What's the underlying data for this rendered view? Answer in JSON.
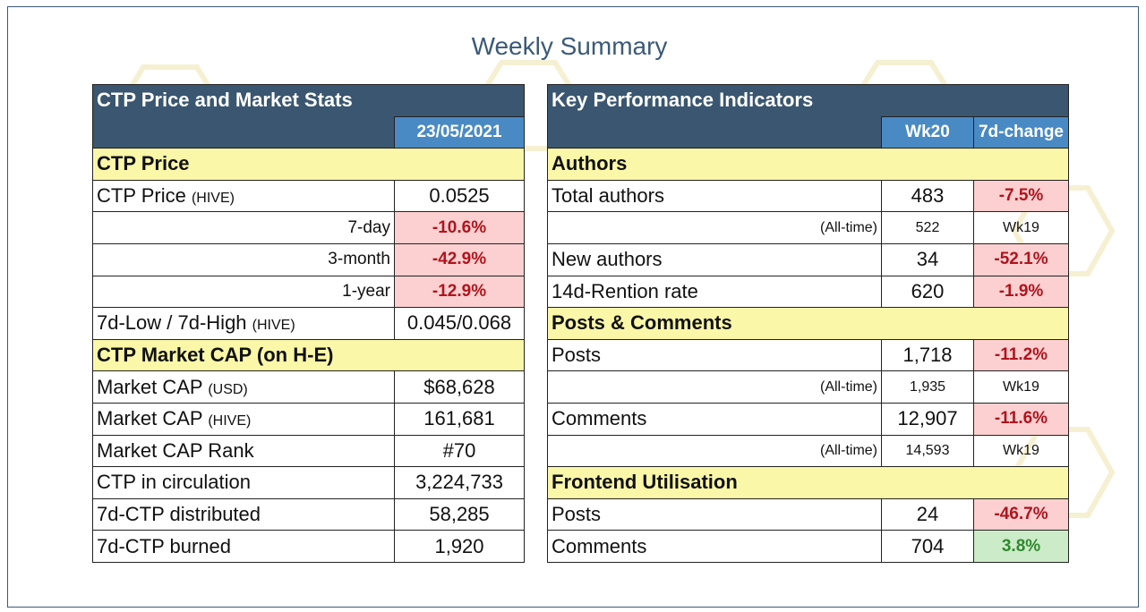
{
  "title": "Weekly Summary",
  "left_table": {
    "header": "CTP Price and Market Stats",
    "date": "23/05/2021",
    "sections": [
      {
        "label": "CTP Price",
        "rows": [
          {
            "label": "CTP Price",
            "unit": "(HIVE)",
            "value": "0.0525",
            "kind": "main"
          },
          {
            "label": "7-day",
            "unit": "",
            "value": "-10.6%",
            "kind": "change"
          },
          {
            "label": "3-month",
            "unit": "",
            "value": "-42.9%",
            "kind": "change"
          },
          {
            "label": "1-year",
            "unit": "",
            "value": "-12.9%",
            "kind": "change"
          },
          {
            "label": "7d-Low / 7d-High",
            "unit": "(HIVE)",
            "value": "0.045/0.068",
            "kind": "main"
          }
        ]
      },
      {
        "label": "CTP Market CAP (on H-E)",
        "rows": [
          {
            "label": "Market CAP",
            "unit": "(USD)",
            "value": "$68,628",
            "kind": "main"
          },
          {
            "label": "Market CAP",
            "unit": "(HIVE)",
            "value": "161,681",
            "kind": "main"
          },
          {
            "label": "Market CAP Rank",
            "unit": "",
            "value": "#70",
            "kind": "main"
          },
          {
            "label": "CTP in circulation",
            "unit": "",
            "value": "3,224,733",
            "kind": "main"
          },
          {
            "label": "7d-CTP distributed",
            "unit": "",
            "value": "58,285",
            "kind": "main"
          },
          {
            "label": "7d-CTP burned",
            "unit": "",
            "value": "1,920",
            "kind": "main"
          }
        ]
      }
    ]
  },
  "right_table": {
    "header": "Key Performance Indicators",
    "col1": "Wk20",
    "col2": "7d-change",
    "sections": [
      {
        "label": "Authors",
        "rows": [
          {
            "label": "Total authors",
            "value": "483",
            "change": "-7.5%",
            "kind": "main",
            "tone": "neg"
          },
          {
            "label": "(All-time)",
            "value": "522",
            "change": "Wk19",
            "kind": "alltime",
            "tone": "none"
          },
          {
            "label": "New authors",
            "value": "34",
            "change": "-52.1%",
            "kind": "main",
            "tone": "neg"
          },
          {
            "label": "14d-Rention rate",
            "value": "620",
            "change": "-1.9%",
            "kind": "main",
            "tone": "neg"
          }
        ]
      },
      {
        "label": "Posts & Comments",
        "rows": [
          {
            "label": "Posts",
            "value": "1,718",
            "change": "-11.2%",
            "kind": "main",
            "tone": "neg"
          },
          {
            "label": "(All-time)",
            "value": "1,935",
            "change": "Wk19",
            "kind": "alltime",
            "tone": "none"
          },
          {
            "label": "Comments",
            "value": "12,907",
            "change": "-11.6%",
            "kind": "main",
            "tone": "neg"
          },
          {
            "label": "(All-time)",
            "value": "14,593",
            "change": "Wk19",
            "kind": "alltime",
            "tone": "none"
          }
        ]
      },
      {
        "label": "Frontend Utilisation",
        "rows": [
          {
            "label": "Posts",
            "value": "24",
            "change": "-46.7%",
            "kind": "main",
            "tone": "neg"
          },
          {
            "label": "Comments",
            "value": "704",
            "change": "3.8%",
            "kind": "main",
            "tone": "pos"
          }
        ]
      }
    ]
  }
}
